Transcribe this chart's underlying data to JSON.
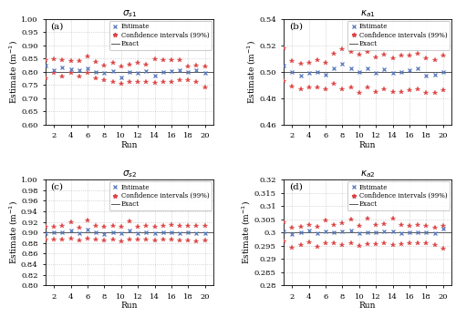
{
  "runs": [
    1,
    2,
    3,
    4,
    5,
    6,
    7,
    8,
    9,
    10,
    11,
    12,
    13,
    14,
    15,
    16,
    17,
    18,
    19,
    20
  ],
  "panel_a": {
    "title": "$\\sigma_{s1}$",
    "exact": 0.8,
    "ylim": [
      0.6,
      1.0
    ],
    "yticks": [
      0.6,
      0.65,
      0.7,
      0.75,
      0.8,
      0.85,
      0.9,
      0.95,
      1.0
    ],
    "estimates": [
      0.823,
      0.808,
      0.817,
      0.81,
      0.805,
      0.813,
      0.8,
      0.796,
      0.803,
      0.778,
      0.801,
      0.795,
      0.802,
      0.785,
      0.798,
      0.802,
      0.805,
      0.8,
      0.807,
      0.797
    ],
    "ci_upper": [
      0.843,
      0.848,
      0.843,
      0.84,
      0.842,
      0.858,
      0.836,
      0.825,
      0.833,
      0.822,
      0.828,
      0.835,
      0.827,
      0.848,
      0.845,
      0.843,
      0.843,
      0.822,
      0.823,
      0.822
    ],
    "ci_lower": [
      0.775,
      0.797,
      0.782,
      0.795,
      0.782,
      0.795,
      0.775,
      0.768,
      0.763,
      0.755,
      0.762,
      0.762,
      0.762,
      0.757,
      0.761,
      0.762,
      0.768,
      0.768,
      0.762,
      0.74
    ]
  },
  "panel_b": {
    "title": "$\\kappa_{a1}$",
    "exact": 0.5,
    "ylim": [
      0.46,
      0.54
    ],
    "yticks": [
      0.46,
      0.48,
      0.5,
      0.52,
      0.54
    ],
    "estimates": [
      0.505,
      0.5,
      0.497,
      0.499,
      0.5,
      0.498,
      0.503,
      0.506,
      0.503,
      0.5,
      0.503,
      0.499,
      0.502,
      0.499,
      0.5,
      0.501,
      0.503,
      0.497,
      0.498,
      0.5
    ],
    "ci_upper": [
      0.518,
      0.508,
      0.506,
      0.507,
      0.509,
      0.507,
      0.514,
      0.517,
      0.515,
      0.513,
      0.515,
      0.511,
      0.513,
      0.51,
      0.512,
      0.512,
      0.514,
      0.51,
      0.509,
      0.512
    ],
    "ci_lower": [
      0.493,
      0.489,
      0.487,
      0.488,
      0.488,
      0.487,
      0.491,
      0.487,
      0.488,
      0.484,
      0.488,
      0.485,
      0.487,
      0.485,
      0.485,
      0.486,
      0.487,
      0.484,
      0.484,
      0.486
    ]
  },
  "panel_c": {
    "title": "$\\sigma_{s2}$",
    "exact": 0.9,
    "ylim": [
      0.8,
      1.0
    ],
    "yticks": [
      0.8,
      0.82,
      0.84,
      0.86,
      0.88,
      0.9,
      0.92,
      0.94,
      0.96,
      0.98,
      1.0
    ],
    "estimates": [
      0.899,
      0.9,
      0.901,
      0.903,
      0.898,
      0.905,
      0.9,
      0.897,
      0.901,
      0.898,
      0.903,
      0.899,
      0.901,
      0.898,
      0.9,
      0.901,
      0.899,
      0.9,
      0.898,
      0.899
    ],
    "ci_upper": [
      0.911,
      0.91,
      0.912,
      0.92,
      0.909,
      0.922,
      0.912,
      0.91,
      0.913,
      0.91,
      0.921,
      0.911,
      0.912,
      0.911,
      0.912,
      0.914,
      0.912,
      0.912,
      0.912,
      0.912
    ],
    "ci_lower": [
      0.886,
      0.886,
      0.887,
      0.888,
      0.884,
      0.888,
      0.886,
      0.884,
      0.887,
      0.883,
      0.886,
      0.886,
      0.886,
      0.884,
      0.886,
      0.886,
      0.885,
      0.885,
      0.883,
      0.884
    ]
  },
  "panel_d": {
    "title": "$\\kappa_{a2}$",
    "exact": 0.3,
    "ylim": [
      0.28,
      0.32
    ],
    "yticks": [
      0.28,
      0.285,
      0.29,
      0.295,
      0.3,
      0.305,
      0.31,
      0.315,
      0.32
    ],
    "estimates": [
      0.3005,
      0.2995,
      0.3002,
      0.3008,
      0.2998,
      0.3003,
      0.3001,
      0.3004,
      0.3007,
      0.2997,
      0.3002,
      0.3001,
      0.3003,
      0.3005,
      0.2998,
      0.2999,
      0.3001,
      0.3002,
      0.2997,
      0.3015
    ],
    "ci_upper": [
      0.3038,
      0.3018,
      0.3023,
      0.303,
      0.3022,
      0.3045,
      0.3028,
      0.3035,
      0.3048,
      0.3025,
      0.3052,
      0.303,
      0.3033,
      0.3052,
      0.3028,
      0.3025,
      0.3028,
      0.3025,
      0.3018,
      0.3025
    ],
    "ci_lower": [
      0.2965,
      0.2942,
      0.2952,
      0.2962,
      0.2945,
      0.296,
      0.2958,
      0.2952,
      0.296,
      0.295,
      0.2955,
      0.2955,
      0.296,
      0.2952,
      0.2955,
      0.2958,
      0.296,
      0.296,
      0.2952,
      0.294
    ]
  },
  "estimate_color": "#5577BB",
  "ci_color": "#DD4444",
  "exact_color": "#555555",
  "bg_color": "#ffffff",
  "grid_color": "#aaaaaa"
}
